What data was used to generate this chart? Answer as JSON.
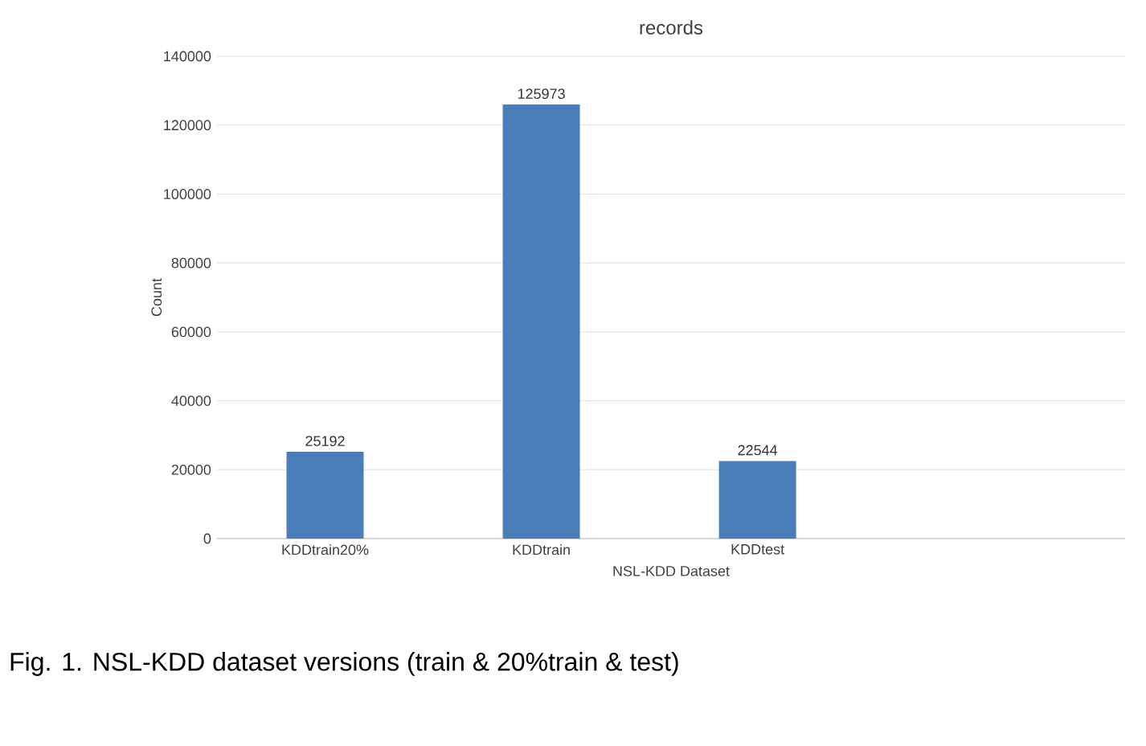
{
  "chart_data": {
    "type": "bar",
    "title": "records",
    "xlabel": "NSL-KDD Dataset",
    "ylabel": "Count",
    "categories": [
      "KDDtrain20%",
      "KDDtrain",
      "KDDtest"
    ],
    "values": [
      25192,
      125973,
      22544
    ],
    "color": "#4a7ebb",
    "ylim": [
      0,
      140000
    ],
    "yticks": [
      0,
      20000,
      40000,
      60000,
      80000,
      100000,
      120000,
      140000
    ],
    "grid": "y",
    "data_labels": true,
    "annotations": [
      "Fig. 1. NSL-KDD dataset versions (train & 20%train & test)"
    ]
  }
}
